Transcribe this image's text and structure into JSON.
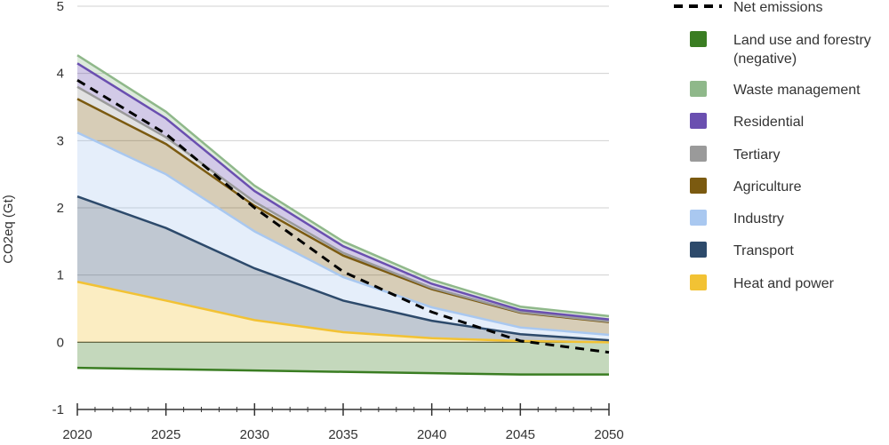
{
  "chart_data": {
    "type": "area",
    "stacked": true,
    "title": "",
    "ylabel": "CO2eq (Gt)",
    "xlabel": "",
    "x": [
      2020,
      2025,
      2030,
      2035,
      2040,
      2045,
      2050
    ],
    "xticks": [
      "2020",
      "2025",
      "2030",
      "2035",
      "2040",
      "2045",
      "2050"
    ],
    "ylim": [
      -1,
      5
    ],
    "yticks": [
      "5",
      "4",
      "3",
      "2",
      "1",
      "0",
      "-1"
    ],
    "grid": "horizontal",
    "legend_position": "right",
    "negative_series": {
      "name": "Land use and forestry (negative)",
      "name_lines": [
        "Land use and forestry",
        "(negative)"
      ],
      "color": "#3a7d22",
      "values": [
        -0.38,
        -0.4,
        -0.42,
        -0.44,
        -0.46,
        -0.48,
        -0.48
      ]
    },
    "series": [
      {
        "name": "Heat and power",
        "color": "#f2c234",
        "values": [
          0.9,
          0.62,
          0.33,
          0.15,
          0.06,
          0.02,
          0.0
        ]
      },
      {
        "name": "Transport",
        "color": "#2d4a6b",
        "values": [
          1.27,
          1.08,
          0.77,
          0.47,
          0.26,
          0.1,
          0.03
        ]
      },
      {
        "name": "Industry",
        "color": "#a9c8f0",
        "values": [
          0.95,
          0.8,
          0.55,
          0.35,
          0.2,
          0.1,
          0.08
        ]
      },
      {
        "name": "Agriculture",
        "color": "#7b5a10",
        "values": [
          0.5,
          0.45,
          0.38,
          0.32,
          0.27,
          0.22,
          0.19
        ]
      },
      {
        "name": "Tertiary",
        "color": "#9a9a9a",
        "values": [
          0.18,
          0.1,
          0.06,
          0.04,
          0.02,
          0.01,
          0.01
        ]
      },
      {
        "name": "Residential",
        "color": "#6a4fb0",
        "values": [
          0.35,
          0.28,
          0.16,
          0.1,
          0.06,
          0.03,
          0.03
        ]
      },
      {
        "name": "Waste management",
        "color": "#8fb88a",
        "values": [
          0.12,
          0.1,
          0.08,
          0.07,
          0.06,
          0.05,
          0.05
        ]
      }
    ],
    "net_emissions": {
      "name": "Net emissions",
      "color": "#000000",
      "style": "dashed",
      "values": [
        3.9,
        3.1,
        2.0,
        1.05,
        0.45,
        0.02,
        -0.15
      ]
    },
    "legend_order": [
      "Net emissions",
      "Land use and forestry (negative)",
      "Waste management",
      "Residential",
      "Tertiary",
      "Agriculture",
      "Industry",
      "Transport",
      "Heat and power"
    ]
  }
}
